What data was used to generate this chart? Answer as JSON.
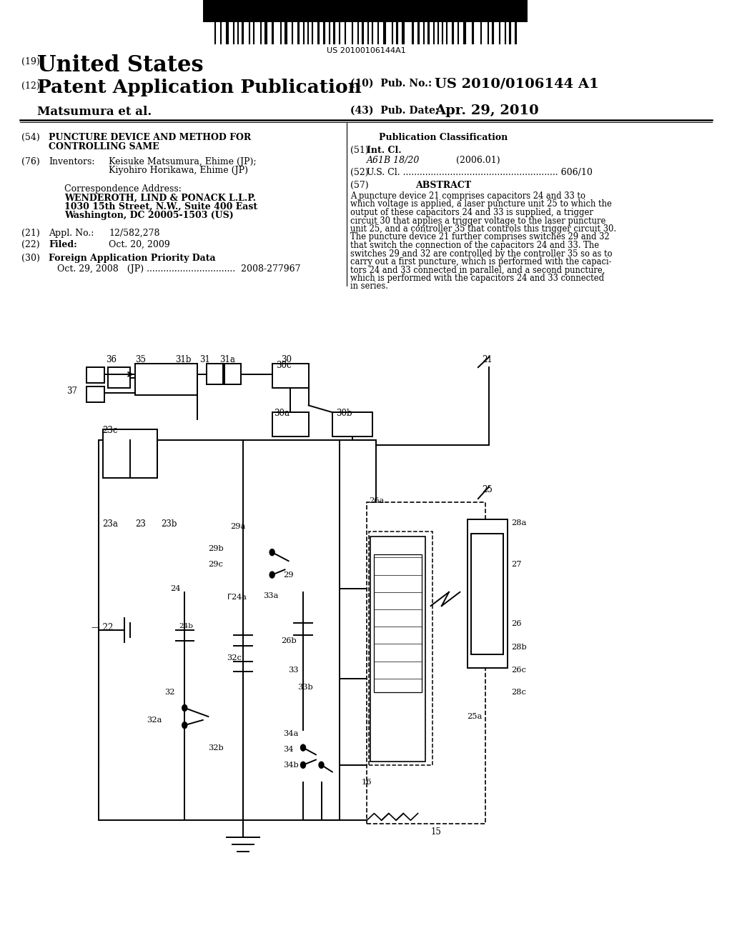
{
  "bg_color": "#ffffff",
  "barcode_text": "US 20100106144A1",
  "title_19": "(19)",
  "title_us": "United States",
  "title_12": "(12)",
  "title_pap": "Patent Application Publication",
  "pub_no_label": "(10)  Pub. No.:",
  "pub_no": "US 2010/0106144 A1",
  "inventor_line": "Matsumura et al.",
  "pub_date_label": "(43)  Pub. Date:",
  "pub_date": "Apr. 29, 2010",
  "field54_label": "(54)",
  "field54_line1": "PUNCTURE DEVICE AND METHOD FOR",
  "field54_line2": "CONTROLLING SAME",
  "pub_class_title": "Publication Classification",
  "field51_label": "(51)",
  "field51_title": "Int. Cl.",
  "field51_class": "A61B 18/20",
  "field51_year": "(2006.01)",
  "field52_label": "(52)",
  "field52": "U.S. Cl. ........................................................ 606/10",
  "field57_label": "(57)",
  "field57_title": "ABSTRACT",
  "abstract_lines": [
    "A puncture device 21 comprises capacitors 24 and 33 to",
    "which voltage is applied, a laser puncture unit 25 to which the",
    "output of these capacitors 24 and 33 is supplied, a trigger",
    "circuit 30 that applies a trigger voltage to the laser puncture",
    "unit 25, and a controller 35 that controls this trigger circuit 30.",
    "The puncture device 21 further comprises switches 29 and 32",
    "that switch the connection of the capacitors 24 and 33. The",
    "switches 29 and 32 are controlled by the controller 35 so as to",
    "carry out a first puncture, which is performed with the capaci-",
    "tors 24 and 33 connected in parallel, and a second puncture,",
    "which is performed with the capacitors 24 and 33 connected",
    "in series."
  ],
  "field76_label": "(76)",
  "field76_title": "Inventors:",
  "field76_line1": "Keisuke Matsumura, Ehime (JP);",
  "field76_line2": "Kiyohiro Horikawa, Ehime (JP)",
  "corr_title": "Correspondence Address:",
  "corr_line1": "WENDEROTH, LIND & PONACK L.L.P.",
  "corr_line2": "1030 15th Street, N.W., Suite 400 East",
  "corr_line3": "Washington, DC 20005-1503 (US)",
  "field21_label": "(21)",
  "field21_title": "Appl. No.:",
  "field21": "12/582,278",
  "field22_label": "(22)",
  "field22_title": "Filed:",
  "field22": "Oct. 20, 2009",
  "field30_label": "(30)",
  "field30_title": "Foreign Application Priority Data",
  "field30_line": "Oct. 29, 2008   (JP) ................................  2008-277967"
}
